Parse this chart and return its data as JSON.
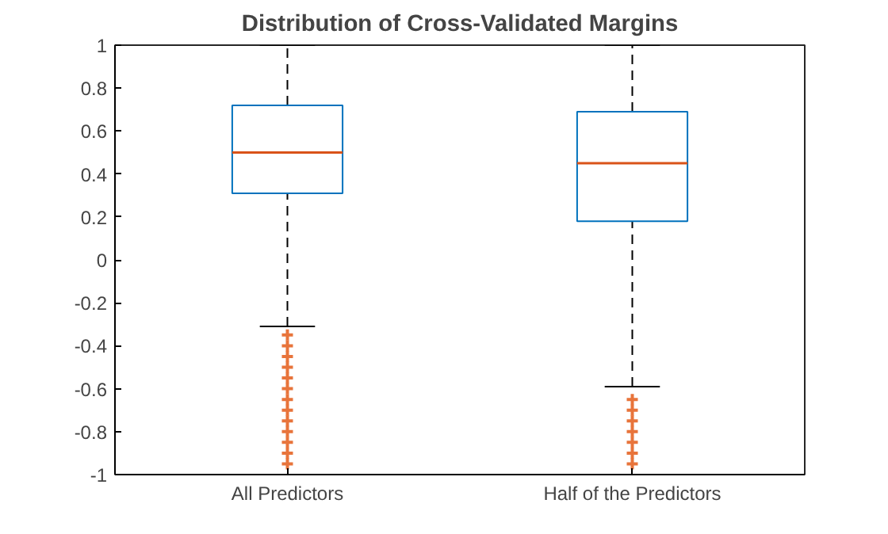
{
  "chart_data": {
    "type": "box",
    "title": "Distribution of Cross-Validated Margins",
    "categories": [
      "All Predictors",
      "Half of the Predictors"
    ],
    "series": [
      {
        "color": "#0072bd",
        "boxes": [
          {
            "low": -0.31,
            "q1": 0.31,
            "median": 0.5,
            "q3": 0.72,
            "high": 1,
            "outliers": [
              -0.35,
              -0.4,
              -0.45,
              -0.5,
              -0.55,
              -0.6,
              -0.65,
              -0.7,
              -0.75,
              -0.8,
              -0.85,
              -0.9,
              -0.95
            ]
          },
          {
            "low": -0.59,
            "q1": 0.18,
            "median": 0.45,
            "q3": 0.69,
            "high": 1,
            "outliers": [
              -0.65,
              -0.7,
              -0.75,
              -0.8,
              -0.85,
              -0.9,
              -0.95
            ]
          }
        ]
      }
    ],
    "ylim": [
      -1,
      1
    ],
    "yticks": [
      -1,
      -0.8,
      -0.6,
      -0.4,
      -0.2,
      0,
      0.2,
      0.4,
      0.6,
      0.8,
      1
    ],
    "marker": "cross",
    "grid": false
  }
}
